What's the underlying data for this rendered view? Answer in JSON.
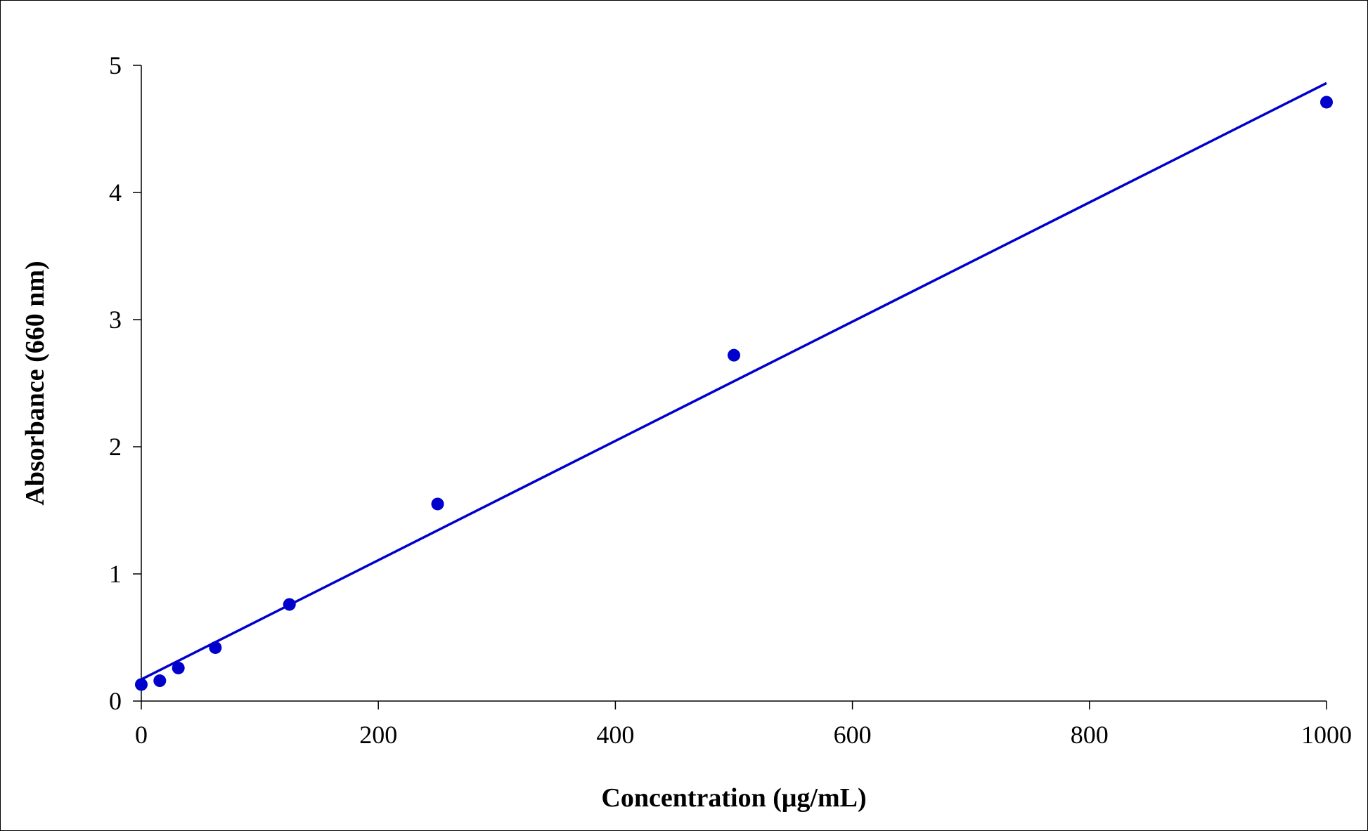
{
  "chart_data": {
    "type": "scatter",
    "title": "",
    "xlabel": "Concentration (μg/mL)",
    "ylabel": "Absorbance (660 nm)",
    "xlim": [
      0,
      1000
    ],
    "ylim": [
      0,
      5
    ],
    "x_ticks": [
      "0",
      "200",
      "400",
      "600",
      "800",
      "1000"
    ],
    "y_ticks": [
      "0",
      "1",
      "2",
      "3",
      "4",
      "5"
    ],
    "grid": false,
    "legend": "none",
    "series": [
      {
        "x": [
          0,
          15.6,
          31.25,
          62.5,
          125,
          250,
          500,
          1000
        ],
        "y": [
          0.13,
          0.16,
          0.26,
          0.42,
          0.76,
          1.55,
          2.72,
          4.71
        ],
        "marker": "circle",
        "color": "#0000CC"
      }
    ],
    "trendline": {
      "type": "linear",
      "x": [
        0,
        1000
      ],
      "y": [
        0.17,
        4.86
      ],
      "color": "#0000CC"
    }
  }
}
